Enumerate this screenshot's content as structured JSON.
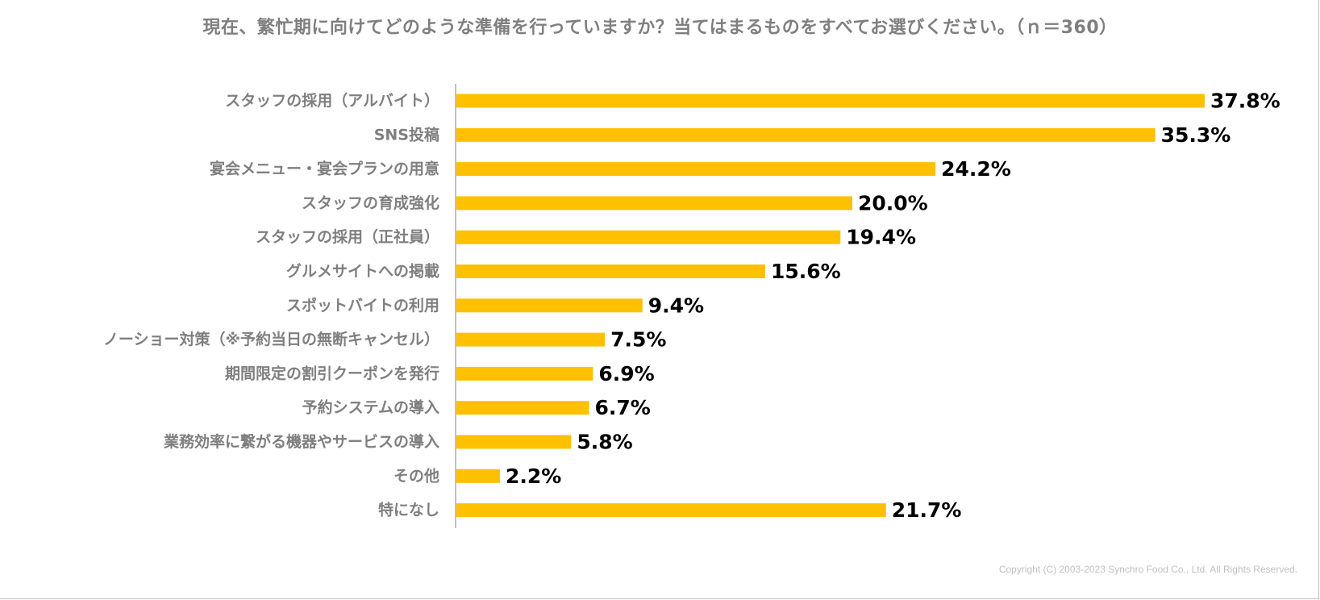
{
  "chart_data": {
    "type": "bar",
    "orientation": "horizontal",
    "title": "現在、繁忙期に向けてどのような準備を行っていますか？当てはまるものをすべてお選びください。（ｎ＝360）",
    "categories": [
      "スタッフの採用（アルバイト）",
      "SNS投稿",
      "宴会メニュー・宴会プランの用意",
      "スタッフの育成強化",
      "スタッフの採用（正社員）",
      "グルメサイトへの掲載",
      "スポットバイトの利用",
      "ノーショー対策（※予約当日の無断キャンセル）",
      "期間限定の割引クーポンを発行",
      "予約システムの導入",
      "業務効率に繋がる機器やサービスの導入",
      "その他",
      "特になし"
    ],
    "values": [
      37.8,
      35.3,
      24.2,
      20.0,
      19.4,
      15.6,
      9.4,
      7.5,
      6.9,
      6.7,
      5.8,
      2.2,
      21.7
    ],
    "value_labels": [
      "37.8%",
      "35.3%",
      "24.2%",
      "20.0%",
      "19.4%",
      "15.6%",
      "9.4%",
      "7.5%",
      "6.9%",
      "6.7%",
      "5.8%",
      "2.2%",
      "21.7%"
    ],
    "unit": "%",
    "xlim": [
      0,
      40
    ],
    "bar_color": "#FFC000",
    "grid": false,
    "xlabel": "",
    "ylabel": ""
  },
  "footer": {
    "copyright": "Copyright (C) 2003-2023   Synchro Food Co., Ltd. All Rights Reserved."
  }
}
